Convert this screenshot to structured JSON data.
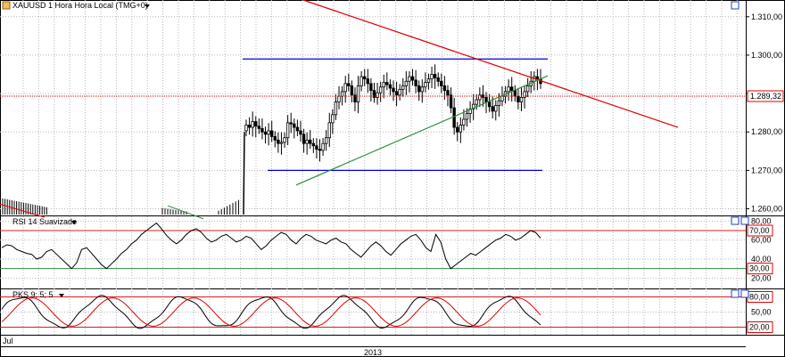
{
  "chart_data": [
    {
      "type": "candlestick",
      "panel": "price",
      "title": "XAUUSD 1 Hora Hora Local (TMG+0)",
      "y_ticks": [
        "1.310,00",
        "1.300,00",
        "1.290,00",
        "1.280,00",
        "1.270,00",
        "1.260,00"
      ],
      "ylim": [
        1258.5,
        1312.5
      ],
      "current_price_label": "1.289,32",
      "current_price": 1289.32,
      "channel_top": 1299.0,
      "channel_bottom": 1270.0,
      "grid": true,
      "colors": {
        "candle": "#000000",
        "resistance": "#e00000",
        "channel": "#0000e0",
        "support": "#2e8b3c",
        "price_line": "#e00000"
      },
      "closes_index_0_to_100": [
        46,
        44,
        49,
        45,
        43,
        40,
        38,
        41,
        36,
        33,
        30,
        31,
        35,
        48,
        47,
        44,
        41,
        38,
        30,
        33,
        30,
        28,
        25,
        24,
        30,
        35,
        48,
        55,
        66,
        71,
        75,
        82,
        80,
        72,
        66,
        80,
        88,
        86,
        82,
        76,
        70,
        74,
        79,
        83,
        81,
        78,
        75,
        72,
        77,
        80,
        84,
        88,
        85,
        80,
        75,
        79,
        83,
        86,
        90,
        87,
        84,
        80,
        76,
        72,
        61,
        44,
        40,
        46,
        51,
        56,
        60,
        64,
        68,
        72,
        70,
        66,
        62,
        58,
        63,
        67,
        71,
        75,
        79,
        76,
        71,
        66,
        70,
        75,
        80,
        84,
        88,
        86,
        82
      ],
      "x_label": "2013",
      "x_start_label": "Jul"
    },
    {
      "type": "line",
      "panel": "rsi",
      "title": "RSI 14 Suavizado",
      "y_ticks": [
        "80,00",
        "60,00",
        "40,00",
        "20,00"
      ],
      "ylim": [
        10,
        85
      ],
      "levels": [
        {
          "value": 70,
          "label": "70,00"
        },
        {
          "value": 30,
          "label": "30,00"
        }
      ],
      "series": [
        {
          "values": [
            52,
            55,
            54,
            50,
            48,
            46,
            45,
            40,
            42,
            48,
            50,
            45,
            40,
            35,
            30,
            36,
            50,
            52,
            46,
            40,
            34,
            30,
            35,
            40,
            46,
            50,
            56,
            60,
            66,
            70,
            74,
            78,
            72,
            65,
            60,
            56,
            60,
            66,
            70,
            72,
            68,
            62,
            58,
            60,
            64,
            66,
            62,
            58,
            60,
            64,
            62,
            56,
            50,
            54,
            60,
            64,
            68,
            66,
            60,
            56,
            62,
            66,
            64,
            60,
            58,
            56,
            60,
            62,
            58,
            56,
            50,
            46,
            42,
            48,
            54,
            58,
            54,
            48,
            44,
            50,
            56,
            60,
            64,
            66,
            60,
            52,
            48,
            66,
            58,
            40,
            30,
            34,
            38,
            42,
            46,
            44,
            48,
            52,
            56,
            60,
            62,
            66,
            64,
            60,
            62,
            66,
            70,
            68,
            62
          ]
        }
      ]
    },
    {
      "type": "line",
      "panel": "stochastic",
      "title": "PKS 9; 5; 5",
      "y_ticks": [
        "80,00",
        "50,00",
        "20,00"
      ],
      "ylim": [
        5,
        95
      ],
      "levels": [
        {
          "value": 80,
          "label": "80,00"
        },
        {
          "value": 20,
          "label": "20,00"
        }
      ],
      "series": [
        {
          "color": "#000000",
          "amplitude": 30,
          "period": 13.0,
          "phase": 0.0
        },
        {
          "color": "#e00000",
          "amplitude": 28,
          "period": 13.0,
          "phase": 0.9
        }
      ]
    }
  ],
  "icons": [
    "chart-type-icon",
    "dropdown-icon",
    "window-restore-icon",
    "window-close-icon"
  ]
}
